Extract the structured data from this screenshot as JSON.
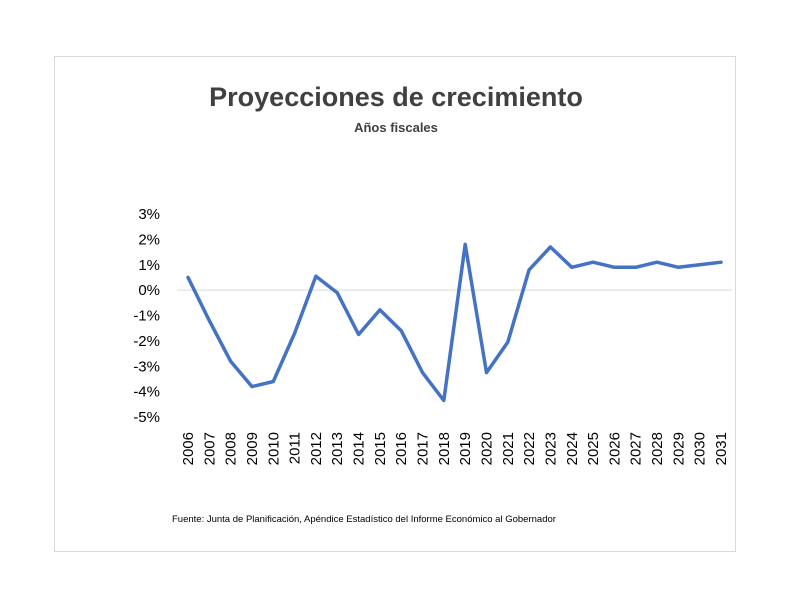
{
  "chart_data": {
    "type": "line",
    "title": "Proyecciones de crecimiento",
    "subtitle": "Años fiscales",
    "xlabel": "",
    "ylabel": "",
    "ylim": [
      -0.05,
      0.03
    ],
    "yticks": [
      "3%",
      "2%",
      "1%",
      "0%",
      "-1%",
      "-2%",
      "-3%",
      "-4%",
      "-5%"
    ],
    "categories": [
      "2006",
      "2007",
      "2008",
      "2009",
      "2010",
      "2011",
      "2012",
      "2013",
      "2014",
      "2015",
      "2016",
      "2017",
      "2018",
      "2019",
      "2020",
      "2021",
      "2022",
      "2023",
      "2024",
      "2025",
      "2026",
      "2027",
      "2028",
      "2029",
      "2030",
      "2031"
    ],
    "series": [
      {
        "color": "#4472c4",
        "values": [
          0.005,
          -0.012,
          -0.028,
          -0.038,
          -0.036,
          -0.017,
          0.0055,
          -0.001,
          -0.0175,
          -0.0078,
          -0.016,
          -0.0325,
          -0.0435,
          0.018,
          -0.0325,
          -0.0205,
          0.008,
          0.017,
          0.009,
          0.011,
          0.009,
          0.009,
          0.011,
          0.009,
          0.01,
          0.011
        ]
      }
    ],
    "grid": "zero-line-only",
    "legend": "none"
  },
  "source": "Fuente: Junta de Planificación, Apéndice Estadístico del Informe Económico al Gobernador"
}
